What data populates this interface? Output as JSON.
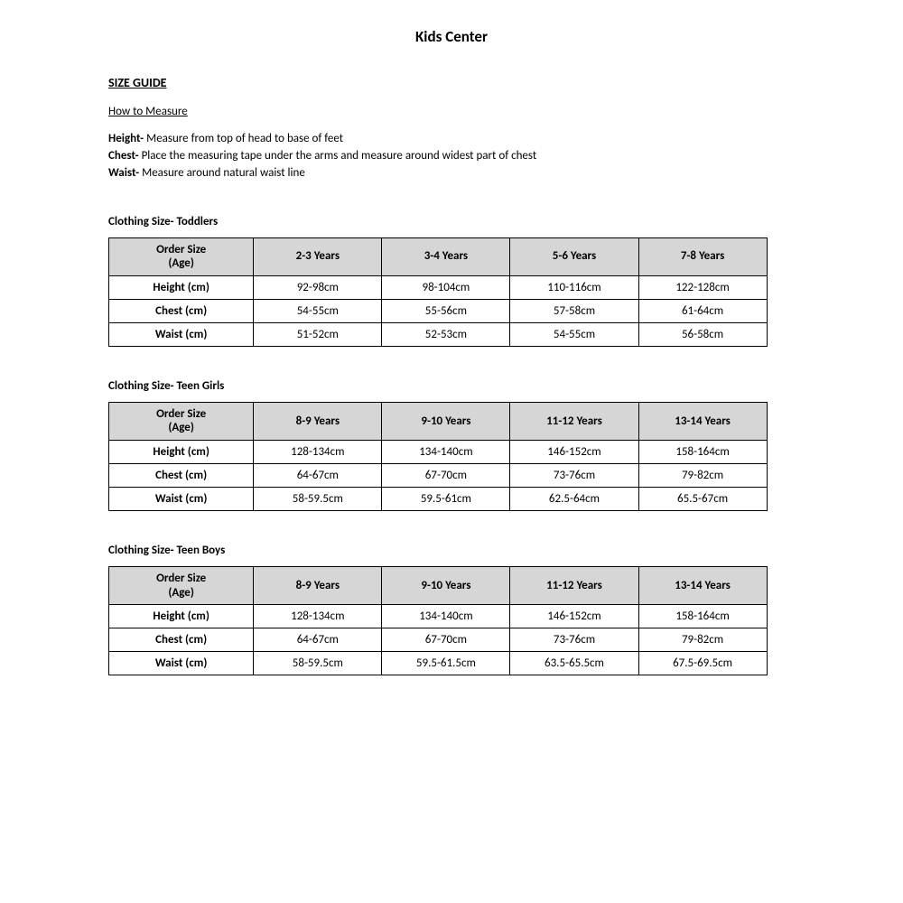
{
  "title": "Kids Center",
  "sizeGuideHeading": "SIZE GUIDE",
  "howToMeasureHeading": "How to Measure",
  "measure": {
    "heightLabel": "Height-",
    "heightText": "  Measure from top of head to base of feet",
    "chestLabel": "Chest-",
    "chestText": "   Place the measuring tape under the arms and measure around widest part of chest",
    "waistLabel": "Waist-",
    "waistText": "   Measure around natural waist line"
  },
  "tables": {
    "header_col0_line1": "Order Size",
    "header_col0_line2": "(Age)",
    "row_labels": [
      "Height (cm)",
      "Chest (cm)",
      "Waist (cm)"
    ],
    "toddlers": {
      "title": "Clothing Size- Toddlers",
      "columns": [
        "2-3 Years",
        "3-4 Years",
        "5-6 Years",
        "7-8 Years"
      ],
      "rows": [
        [
          "92-98cm",
          "98-104cm",
          "110-116cm",
          "122-128cm"
        ],
        [
          "54-55cm",
          "55-56cm",
          "57-58cm",
          "61-64cm"
        ],
        [
          "51-52cm",
          "52-53cm",
          "54-55cm",
          "56-58cm"
        ]
      ]
    },
    "teen_girls": {
      "title": "Clothing Size- Teen Girls",
      "columns": [
        "8-9 Years",
        "9-10 Years",
        "11-12 Years",
        "13-14 Years"
      ],
      "rows": [
        [
          "128-134cm",
          "134-140cm",
          "146-152cm",
          "158-164cm"
        ],
        [
          "64-67cm",
          "67-70cm",
          "73-76cm",
          "79-82cm"
        ],
        [
          "58-59.5cm",
          "59.5-61cm",
          "62.5-64cm",
          "65.5-67cm"
        ]
      ]
    },
    "teen_boys": {
      "title": "Clothing Size- Teen Boys",
      "columns": [
        "8-9 Years",
        "9-10 Years",
        "11-12 Years",
        "13-14 Years"
      ],
      "rows": [
        [
          "128-134cm",
          "134-140cm",
          "146-152cm",
          "158-164cm"
        ],
        [
          "64-67cm",
          "67-70cm",
          "73-76cm",
          "79-82cm"
        ],
        [
          "58-59.5cm",
          "59.5-61.5cm",
          "63.5-65.5cm",
          "67.5-69.5cm"
        ]
      ]
    }
  },
  "style": {
    "header_bg": "#d6d6d6",
    "border_color": "#000000",
    "text_color": "#000000",
    "background_color": "#ffffff",
    "title_fontsize": 17,
    "heading_fontsize": 14,
    "body_fontsize": 13
  }
}
